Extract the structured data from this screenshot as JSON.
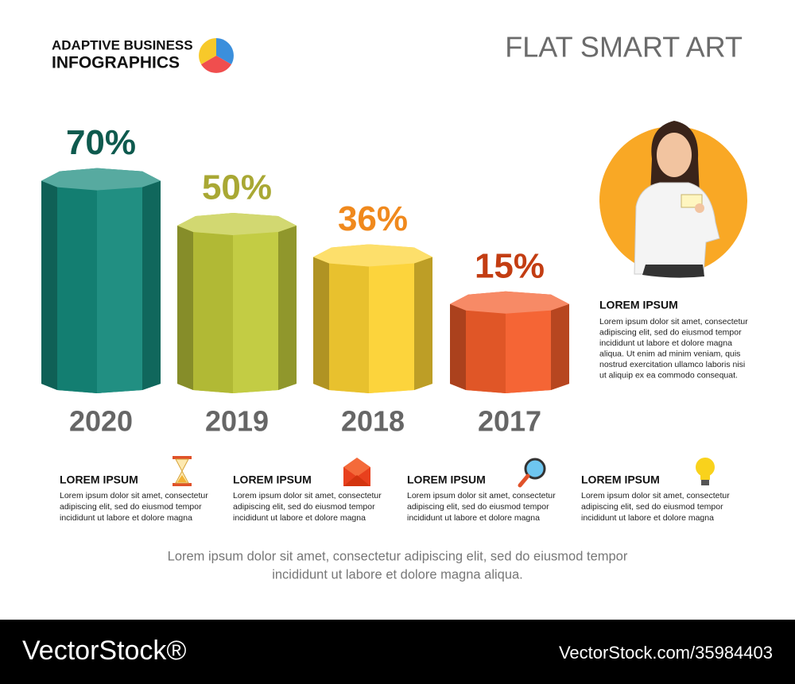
{
  "header": {
    "brand_line1": "ADAPTIVE BUSINESS",
    "brand_line2": "INFOGRAPHICS",
    "title": "FLAT SMART ART"
  },
  "chart_data": {
    "type": "bar",
    "categories": [
      "2020",
      "2019",
      "2018",
      "2017"
    ],
    "values": [
      70,
      50,
      36,
      15
    ],
    "value_labels": [
      "70%",
      "50%",
      "36%",
      "15%"
    ],
    "colors": [
      "#15897b",
      "#c0c93a",
      "#fcd232",
      "#f45d2a"
    ],
    "value_label_colors": [
      "#0e5a4e",
      "#a9a834",
      "#f0891d",
      "#c33d12"
    ]
  },
  "side_note": {
    "title": "LOREM IPSUM",
    "lines": [
      "Lorem ipsum dolor sit amet, consectetur",
      "adipiscing elit, sed do eiusmod tempor",
      "incididunt ut labore et dolore magna",
      "aliqua. Ut enim ad minim veniam, quis",
      "nostrud exercitation ullamco laboris nisi",
      "ut aliquip ex ea commodo consequat."
    ]
  },
  "blocks": [
    {
      "title": "LOREM IPSUM",
      "lines": [
        "Lorem ipsum dolor sit amet, consectetur",
        "adipiscing elit, sed do eiusmod tempor",
        "incididunt ut labore et dolore magna"
      ]
    },
    {
      "title": "LOREM IPSUM",
      "lines": [
        "Lorem ipsum dolor sit amet, consectetur",
        "adipiscing elit, sed do eiusmod tempor",
        "incididunt ut labore et dolore magna"
      ]
    },
    {
      "title": "LOREM IPSUM",
      "lines": [
        "Lorem ipsum dolor sit amet, consectetur",
        "adipiscing elit, sed do eiusmod tempor",
        "incididunt ut labore et dolore magna"
      ]
    },
    {
      "title": "LOREM IPSUM",
      "lines": [
        "Lorem ipsum dolor sit amet, consectetur",
        "adipiscing elit, sed do eiusmod tempor",
        "incididunt ut labore et dolore magna"
      ]
    }
  ],
  "caption": {
    "lines": [
      "Lorem ipsum dolor sit amet, consectetur adipiscing elit, sed do eiusmod tempor",
      "incididunt ut labore et dolore magna aliqua."
    ]
  },
  "watermark": {
    "brand": "VectorStock®",
    "id": "VectorStock.com/35984403"
  }
}
